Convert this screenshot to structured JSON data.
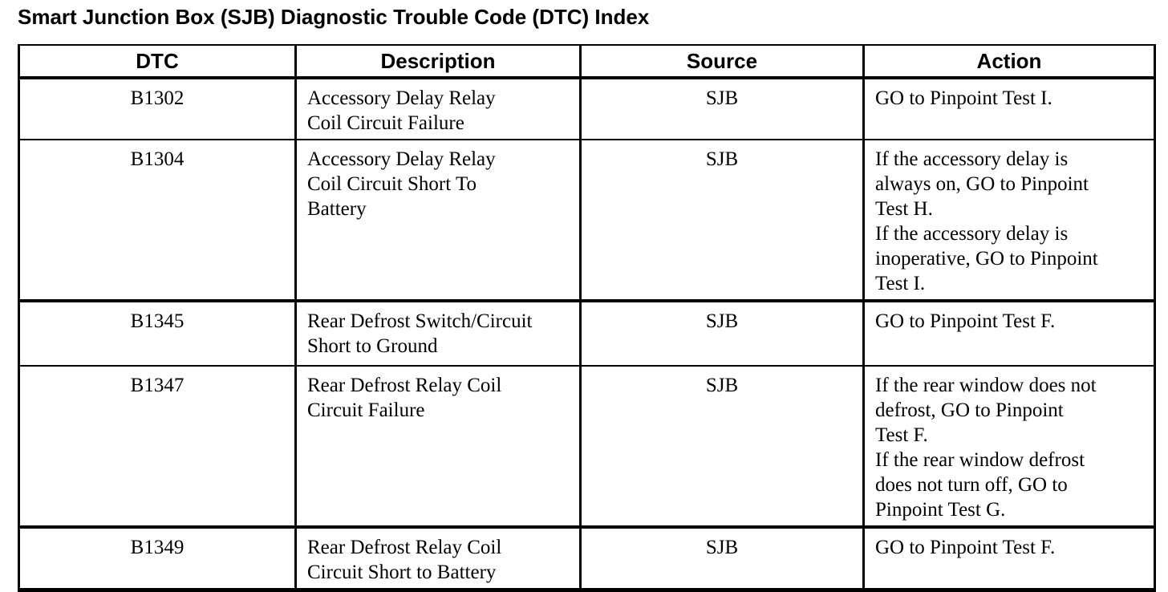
{
  "page": {
    "title": "Smart Junction Box (SJB) Diagnostic Trouble Code (DTC) Index"
  },
  "colors": {
    "background": "#ffffff",
    "text": "#000000",
    "border": "#000000"
  },
  "table": {
    "headers": [
      "DTC",
      "Description",
      "Source",
      "Action"
    ],
    "rows": [
      {
        "dtc": "B1302",
        "description_lines": [
          "Accessory Delay Relay",
          "Coil Circuit Failure"
        ],
        "source": "SJB",
        "action_lines": [
          "GO to Pinpoint Test I."
        ],
        "group_end": false
      },
      {
        "dtc": "B1304",
        "description_lines": [
          "Accessory Delay Relay",
          "Coil Circuit Short To",
          "Battery"
        ],
        "source": "SJB",
        "action_lines": [
          "If the accessory delay is",
          "always on, GO to Pinpoint",
          "Test H.",
          "If the accessory delay is",
          "inoperative, GO to Pinpoint",
          "Test I."
        ],
        "group_end": true
      },
      {
        "dtc": "B1345",
        "description_lines": [
          "Rear Defrost Switch/Circuit",
          "Short to Ground"
        ],
        "source": "SJB",
        "action_lines": [
          "GO to Pinpoint Test F."
        ],
        "group_end": false
      },
      {
        "dtc": "B1347",
        "description_lines": [
          "Rear Defrost Relay Coil",
          "Circuit Failure"
        ],
        "source": "SJB",
        "action_lines": [
          "If the rear window does not",
          "defrost, GO to Pinpoint",
          "Test F.",
          "If the rear window defrost",
          "does not turn off, GO to",
          "Pinpoint Test G."
        ],
        "group_end": true
      },
      {
        "dtc": "B1349",
        "description_lines": [
          "Rear Defrost Relay Coil",
          "Circuit Short to Battery"
        ],
        "source": "SJB",
        "action_lines": [
          "GO to Pinpoint Test F."
        ],
        "group_end": true
      }
    ]
  }
}
